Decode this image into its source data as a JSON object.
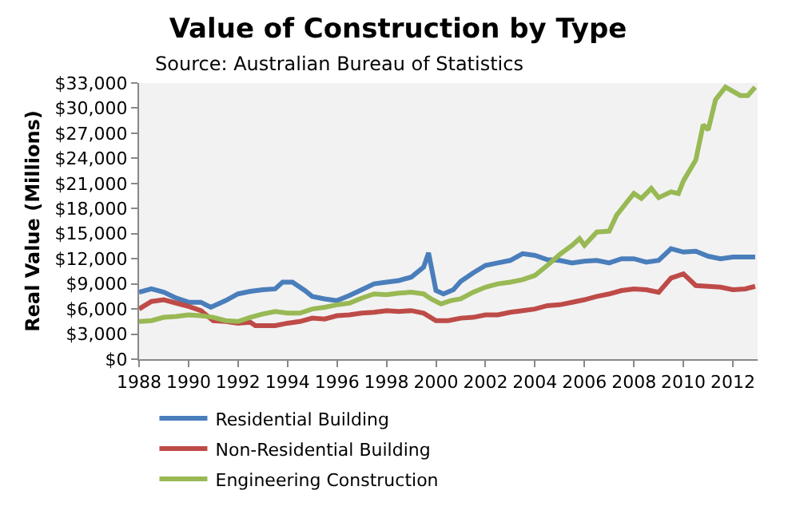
{
  "chart_data": {
    "type": "line",
    "title": "Value of Construction by Type",
    "annotations": [
      "Source: Australian Bureau of Statistics"
    ],
    "ylabel": "Real Value (Millions)",
    "xlim": [
      1988,
      2013
    ],
    "xticks": [
      1988,
      1990,
      1992,
      1994,
      1996,
      1998,
      2000,
      2002,
      2004,
      2006,
      2008,
      2010,
      2012
    ],
    "ylim": [
      0,
      33000
    ],
    "yticks": [
      {
        "value": 0,
        "label": "$0"
      },
      {
        "value": 3000,
        "label": "$3,000"
      },
      {
        "value": 6000,
        "label": "$6,000"
      },
      {
        "value": 9000,
        "label": "$9,000"
      },
      {
        "value": 12000,
        "label": "$12,000"
      },
      {
        "value": 15000,
        "label": "$15,000"
      },
      {
        "value": 18000,
        "label": "$18,000"
      },
      {
        "value": 21000,
        "label": "$21,000"
      },
      {
        "value": 24000,
        "label": "$24,000"
      },
      {
        "value": 27000,
        "label": "$27,000"
      },
      {
        "value": 30000,
        "label": "$30,000"
      },
      {
        "value": 33000,
        "label": "$33,000"
      }
    ],
    "grid": false,
    "legend": "bottom",
    "marker": "none",
    "line_style": "solid",
    "series": [
      {
        "name": "Residential Building",
        "color": "#4a7ebb",
        "x": [
          1988,
          1988.5,
          1989,
          1989.5,
          1990,
          1990.5,
          1990.9,
          1991.5,
          1992,
          1992.5,
          1993,
          1993.5,
          1993.8,
          1994.2,
          1994.7,
          1995,
          1995.5,
          1996,
          1996.5,
          1997,
          1997.5,
          1998,
          1998.5,
          1999,
          1999.5,
          1999.7,
          2000,
          2000.3,
          2000.7,
          2001,
          2001.5,
          2002,
          2002.5,
          2003,
          2003.5,
          2004,
          2004.5,
          2005,
          2005.5,
          2006,
          2006.5,
          2007,
          2007.5,
          2008,
          2008.5,
          2009,
          2009.5,
          2010,
          2010.5,
          2011,
          2011.5,
          2012,
          2012.5,
          2012.9
        ],
        "values": [
          8000,
          8400,
          8000,
          7300,
          6800,
          6800,
          6200,
          7000,
          7800,
          8100,
          8300,
          8400,
          9200,
          9200,
          8200,
          7500,
          7200,
          7000,
          7600,
          8300,
          9000,
          9200,
          9400,
          9800,
          11000,
          12700,
          8200,
          7800,
          8300,
          9300,
          10300,
          11200,
          11500,
          11800,
          12600,
          12400,
          11900,
          11800,
          11500,
          11700,
          11800,
          11500,
          12000,
          12000,
          11600,
          11800,
          13200,
          12800,
          12900,
          12300,
          12000,
          12200,
          12200,
          12200
        ]
      },
      {
        "name": "Non-Residential Building",
        "color": "#be4b48",
        "x": [
          1988,
          1988.5,
          1989,
          1989.5,
          1990,
          1990.5,
          1991,
          1991.5,
          1992,
          1992.5,
          1992.7,
          1993.5,
          1994,
          1994.5,
          1995,
          1995.5,
          1996,
          1996.5,
          1997,
          1997.5,
          1998,
          1998.5,
          1999,
          1999.5,
          2000,
          2000.5,
          2001,
          2001.5,
          2002,
          2002.5,
          2003,
          2003.5,
          2004,
          2004.5,
          2005,
          2005.5,
          2006,
          2006.5,
          2007,
          2007.5,
          2008,
          2008.5,
          2009,
          2009.5,
          2010,
          2010.5,
          2011,
          2011.5,
          2012,
          2012.5,
          2012.9
        ],
        "values": [
          6000,
          6900,
          7100,
          6700,
          6300,
          5800,
          4600,
          4500,
          4300,
          4400,
          4000,
          4000,
          4300,
          4500,
          4900,
          4800,
          5200,
          5300,
          5500,
          5600,
          5800,
          5700,
          5800,
          5500,
          4600,
          4600,
          4900,
          5000,
          5300,
          5300,
          5600,
          5800,
          6000,
          6400,
          6500,
          6800,
          7100,
          7500,
          7800,
          8200,
          8400,
          8300,
          8000,
          9700,
          10200,
          8800,
          8700,
          8600,
          8300,
          8400,
          8700
        ]
      },
      {
        "name": "Engineering Construction",
        "color": "#98b954",
        "x": [
          1988,
          1988.5,
          1989,
          1989.5,
          1990,
          1990.5,
          1991,
          1991.5,
          1992,
          1992.5,
          1993,
          1993.5,
          1994,
          1994.5,
          1995,
          1995.5,
          1996,
          1996.5,
          1997,
          1997.5,
          1998,
          1998.5,
          1999,
          1999.5,
          1999.8,
          2000.2,
          2000.6,
          2001,
          2001.5,
          2002,
          2002.5,
          2003,
          2003.5,
          2004,
          2004.5,
          2005,
          2005.5,
          2005.8,
          2006,
          2006.5,
          2007,
          2007.3,
          2007.7,
          2008,
          2008.3,
          2008.7,
          2009,
          2009.5,
          2009.8,
          2010,
          2010.5,
          2010.8,
          2011,
          2011.3,
          2011.7,
          2012,
          2012.3,
          2012.6,
          2012.9
        ],
        "values": [
          4500,
          4600,
          5000,
          5100,
          5300,
          5200,
          5000,
          4600,
          4500,
          5000,
          5400,
          5700,
          5500,
          5500,
          6000,
          6200,
          6500,
          6700,
          7300,
          7800,
          7700,
          7900,
          8000,
          7800,
          7200,
          6600,
          7000,
          7200,
          8000,
          8600,
          9000,
          9200,
          9500,
          10000,
          11200,
          12500,
          13600,
          14400,
          13600,
          15200,
          15300,
          17200,
          18700,
          19800,
          19200,
          20400,
          19300,
          20000,
          19800,
          21300,
          23800,
          28000,
          27400,
          31000,
          32500,
          32000,
          31500,
          31500,
          32500
        ]
      }
    ]
  }
}
